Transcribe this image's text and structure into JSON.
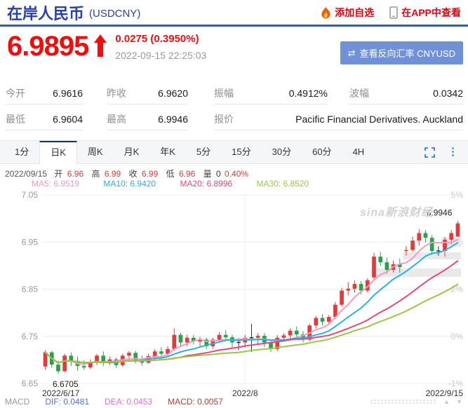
{
  "header": {
    "title": "在岸人民币",
    "symbol": "(USDCNY)",
    "add_watchlist": "添加自选",
    "view_in_app": "在APP中查看"
  },
  "quote": {
    "price": "6.9895",
    "change": "0.0275 (0.3950%)",
    "timestamp": "2022-09-15 22:25:03",
    "reverse_button": "查看反向汇率 CNYUSD",
    "reverse_icon": "⇄"
  },
  "stats": {
    "rows": [
      [
        {
          "label": "今开",
          "value": "6.9616"
        },
        {
          "label": "昨收",
          "value": "6.9620"
        },
        {
          "label": "振幅",
          "value": "0.4912%"
        },
        {
          "label": "波幅",
          "value": "0.0342"
        }
      ],
      [
        {
          "label": "最低",
          "value": "6.9604"
        },
        {
          "label": "最高",
          "value": "6.9946"
        },
        {
          "label": "报价",
          "value": "Pacific Financial Derivatives. Auckland"
        }
      ]
    ]
  },
  "tabs": {
    "items": [
      "1分",
      "日K",
      "周K",
      "月K",
      "年K",
      "5分",
      "15分",
      "30分",
      "60分",
      "4H"
    ],
    "active": "日K"
  },
  "info_line": {
    "date": "2022/09/15",
    "open_l": "开",
    "open": "6.96",
    "high_l": "高",
    "high": "6.99",
    "close_l": "收",
    "close": "6.99",
    "low_l": "低",
    "low": "6.96",
    "vol_l": "量",
    "vol": "0",
    "pct": "0.40%"
  },
  "watermark": "sina新浪财经",
  "footer": {
    "name": "MACD",
    "dif": "DIF: 0.0481",
    "dea": "DEA: 0.0453",
    "macd": "MACD: 0.0057"
  },
  "colors": {
    "title_blue": "#2841a5",
    "link_red": "#e60012",
    "price_red": "#f20d0d",
    "time_gray": "#9a9a9a",
    "button_blue": "#7090d8",
    "icon_blue": "#3a7bd5",
    "value_red": "#e23b3b",
    "dif": "#5a6ce4",
    "dea": "#e16de1",
    "macd": "#aa4038"
  },
  "chart_data": {
    "type": "candlestick",
    "title": "USDCNY 日K",
    "ylim": [
      6.65,
      7.05
    ],
    "ticks": [
      {
        "v": 7.05,
        "left": "7.05",
        "right": "5%"
      },
      {
        "v": 6.95,
        "left": "6.95",
        "right": "3%"
      },
      {
        "v": 6.85,
        "left": "6.85",
        "right": "2%"
      },
      {
        "v": 6.75,
        "left": "6.75",
        "right": "0%"
      },
      {
        "v": 6.65,
        "left": "6.65",
        "right": "-1%"
      }
    ],
    "x_marks": [
      {
        "i": 0,
        "text": "2022/6/17",
        "anchor": "start",
        "grid": false
      },
      {
        "i": 31,
        "text": "2022/8",
        "anchor": "middle",
        "grid": true
      },
      {
        "i": 64,
        "text": "2022/9/15",
        "anchor": "end",
        "grid": false
      }
    ],
    "up_color": "#e23b3b",
    "down_color": "#2aa24a",
    "doji_color": "#333333",
    "high_label": "6.9946",
    "high_value": 6.9946,
    "high_index": 64,
    "low_label": "6.6705",
    "low_value": 6.6705,
    "low_index": 2,
    "gap_bands": [
      {
        "start_index": 51,
        "low": 6.876,
        "high": 6.894
      },
      {
        "start_index": 56,
        "low": 6.913,
        "high": 6.928
      },
      {
        "start_index": 62,
        "low": 6.94,
        "high": 6.96
      }
    ],
    "ma": [
      {
        "period": 5,
        "color": "#f49ac1",
        "label": "MA5: 6.9519"
      },
      {
        "period": 10,
        "color": "#29b2e2",
        "label": "MA10: 6.9420"
      },
      {
        "period": 20,
        "color": "#e8477d",
        "label": "MA20: 6.8996"
      },
      {
        "period": 30,
        "color": "#9cc740",
        "label": "MA30: 6.8520"
      }
    ],
    "dates": [
      "2022/06/17",
      "2022/06/20",
      "2022/06/21",
      "2022/06/22",
      "2022/06/23",
      "2022/06/24",
      "2022/06/27",
      "2022/06/28",
      "2022/06/29",
      "2022/06/30",
      "2022/07/01",
      "2022/07/04",
      "2022/07/05",
      "2022/07/06",
      "2022/07/07",
      "2022/07/08",
      "2022/07/11",
      "2022/07/12",
      "2022/07/13",
      "2022/07/14",
      "2022/07/15",
      "2022/07/18",
      "2022/07/19",
      "2022/07/20",
      "2022/07/21",
      "2022/07/22",
      "2022/07/25",
      "2022/07/26",
      "2022/07/27",
      "2022/07/28",
      "2022/07/29",
      "2022/08/01",
      "2022/08/02",
      "2022/08/03",
      "2022/08/04",
      "2022/08/05",
      "2022/08/08",
      "2022/08/09",
      "2022/08/10",
      "2022/08/11",
      "2022/08/12",
      "2022/08/15",
      "2022/08/16",
      "2022/08/17",
      "2022/08/18",
      "2022/08/19",
      "2022/08/22",
      "2022/08/23",
      "2022/08/24",
      "2022/08/25",
      "2022/08/26",
      "2022/08/29",
      "2022/08/30",
      "2022/08/31",
      "2022/09/01",
      "2022/09/02",
      "2022/09/05",
      "2022/09/06",
      "2022/09/07",
      "2022/09/08",
      "2022/09/09",
      "2022/09/12",
      "2022/09/13",
      "2022/09/14",
      "2022/09/15"
    ],
    "ohlc": [
      [
        6.686,
        6.721,
        6.679,
        6.716
      ],
      [
        6.716,
        6.719,
        6.683,
        6.69
      ],
      [
        6.69,
        6.698,
        6.6705,
        6.676
      ],
      [
        6.676,
        6.713,
        6.674,
        6.709
      ],
      [
        6.709,
        6.716,
        6.687,
        6.698
      ],
      [
        6.698,
        6.707,
        6.677,
        6.687
      ],
      [
        6.687,
        6.699,
        6.679,
        6.684
      ],
      [
        6.684,
        6.701,
        6.68,
        6.696
      ],
      [
        6.696,
        6.713,
        6.689,
        6.709
      ],
      [
        6.709,
        6.718,
        6.687,
        6.693
      ],
      [
        6.693,
        6.707,
        6.689,
        6.701
      ],
      [
        6.701,
        6.705,
        6.683,
        6.689
      ],
      [
        6.689,
        6.713,
        6.685,
        6.709
      ],
      [
        6.709,
        6.719,
        6.699,
        6.715
      ],
      [
        6.715,
        6.719,
        6.693,
        6.699
      ],
      [
        6.699,
        6.709,
        6.688,
        6.694
      ],
      [
        6.694,
        6.713,
        6.692,
        6.708
      ],
      [
        6.708,
        6.723,
        6.699,
        6.718
      ],
      [
        6.718,
        6.727,
        6.707,
        6.713
      ],
      [
        6.713,
        6.729,
        6.709,
        6.723
      ],
      [
        6.723,
        6.767,
        6.719,
        6.753
      ],
      [
        6.753,
        6.757,
        6.727,
        6.737
      ],
      [
        6.737,
        6.753,
        6.729,
        6.747
      ],
      [
        6.747,
        6.753,
        6.733,
        6.739
      ],
      [
        6.739,
        6.749,
        6.727,
        6.743
      ],
      [
        6.743,
        6.747,
        6.723,
        6.729
      ],
      [
        6.729,
        6.747,
        6.723,
        6.743
      ],
      [
        6.743,
        6.759,
        6.737,
        6.753
      ],
      [
        6.753,
        6.763,
        6.743,
        6.748
      ],
      [
        6.748,
        6.753,
        6.727,
        6.737
      ],
      [
        6.737,
        6.746,
        6.721,
        6.737
      ],
      [
        6.737,
        6.753,
        6.727,
        6.747
      ],
      [
        6.747,
        6.777,
        6.717,
        6.747
      ],
      [
        6.747,
        6.757,
        6.733,
        6.751
      ],
      [
        6.751,
        6.757,
        6.727,
        6.737
      ],
      [
        6.737,
        6.743,
        6.717,
        6.723
      ],
      [
        6.723,
        6.753,
        6.719,
        6.747
      ],
      [
        6.747,
        6.757,
        6.739,
        6.752
      ],
      [
        6.752,
        6.767,
        6.743,
        6.762
      ],
      [
        6.762,
        6.771,
        6.747,
        6.754
      ],
      [
        6.754,
        6.761,
        6.737,
        6.743
      ],
      [
        6.743,
        6.777,
        6.739,
        6.773
      ],
      [
        6.773,
        6.793,
        6.767,
        6.789
      ],
      [
        6.789,
        6.797,
        6.773,
        6.781
      ],
      [
        6.781,
        6.795,
        6.775,
        6.791
      ],
      [
        6.791,
        6.823,
        6.787,
        6.817
      ],
      [
        6.817,
        6.853,
        6.813,
        6.847
      ],
      [
        6.847,
        6.865,
        6.837,
        6.851
      ],
      [
        6.851,
        6.869,
        6.843,
        6.861
      ],
      [
        6.861,
        6.867,
        6.839,
        6.847
      ],
      [
        6.847,
        6.873,
        6.843,
        6.869
      ],
      [
        6.875,
        6.927,
        6.871,
        6.919
      ],
      [
        6.919,
        6.929,
        6.899,
        6.907
      ],
      [
        6.907,
        6.917,
        6.883,
        6.891
      ],
      [
        6.891,
        6.911,
        6.885,
        6.903
      ],
      [
        6.903,
        6.915,
        6.885,
        6.897
      ],
      [
        6.931,
        6.941,
        6.921,
        6.933
      ],
      [
        6.933,
        6.961,
        6.929,
        6.953
      ],
      [
        6.953,
        6.977,
        6.943,
        6.969
      ],
      [
        6.969,
        6.975,
        6.949,
        6.959
      ],
      [
        6.959,
        6.965,
        6.923,
        6.931
      ],
      [
        6.931,
        6.941,
        6.921,
        6.931
      ],
      [
        6.931,
        6.961,
        6.919,
        6.955
      ],
      [
        6.955,
        6.975,
        6.945,
        6.969
      ],
      [
        6.9616,
        6.9946,
        6.9604,
        6.9895
      ]
    ]
  }
}
